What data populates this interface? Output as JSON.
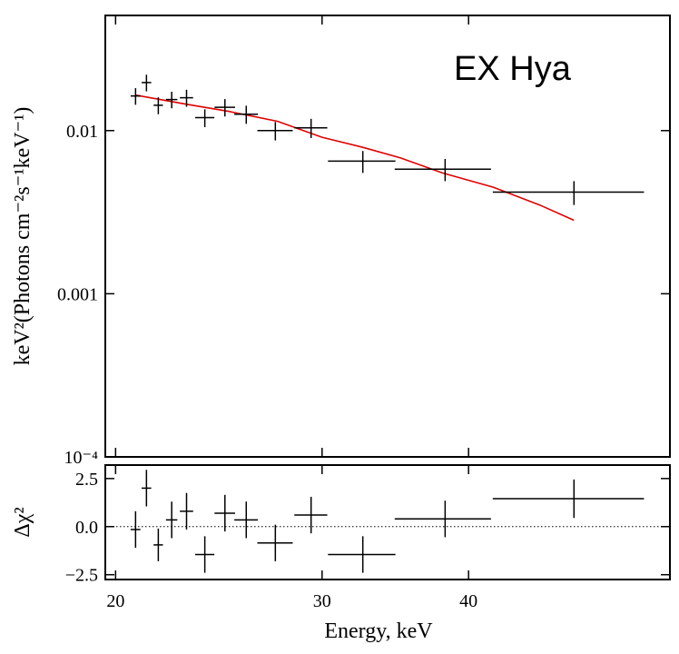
{
  "chart_data": [
    {
      "type": "scatter",
      "annotation": "EX Hya",
      "ylabel": "keV²(Photons cm⁻²s⁻¹keV⁻¹)",
      "xscale": "log",
      "yscale": "log",
      "xlim": [
        19.6,
        59.4
      ],
      "ylim": [
        0.0001,
        0.0508
      ],
      "xticks": [
        20,
        30,
        40
      ],
      "yticks": [
        0.01,
        0.001,
        {
          "value": 0.0001,
          "label": "10⁻⁴"
        }
      ],
      "color": "#000000",
      "x": [
        20.8,
        21.25,
        21.75,
        22.33,
        22.99,
        23.83,
        24.79,
        25.85,
        27.37,
        29.36,
        32.5,
        38.2,
        49.2
      ],
      "xerr": [
        0.2,
        0.2,
        0.2,
        0.25,
        0.3,
        0.45,
        0.5,
        0.6,
        0.95,
        0.95,
        2.15,
        3.6,
        7.25
      ],
      "values": [
        0.0163,
        0.0197,
        0.0143,
        0.0155,
        0.0159,
        0.012,
        0.0139,
        0.0126,
        0.01,
        0.0104,
        0.0065,
        0.0058,
        0.0042
      ],
      "yerr": [
        0.0019,
        0.0023,
        0.0017,
        0.0018,
        0.0019,
        0.0015,
        0.0017,
        0.0016,
        0.0013,
        0.0014,
        0.001,
        0.0009,
        0.0007
      ],
      "model": {
        "color": "#e00000",
        "x": [
          20.8,
          23,
          25,
          27.5,
          30,
          32.5,
          35,
          38,
          42,
          46,
          49.2
        ],
        "values": [
          0.0165,
          0.0145,
          0.0131,
          0.0114,
          0.0091,
          0.0079,
          0.0068,
          0.0055,
          0.0045,
          0.0035,
          0.00282
        ]
      }
    },
    {
      "type": "scatter",
      "xlabel": "Energy, keV",
      "ylabel": "Δχ²",
      "xscale": "log",
      "xlim": [
        19.6,
        59.4
      ],
      "ylim": [
        -2.75,
        3.2
      ],
      "xticks": [
        20,
        30,
        40
      ],
      "yticks": [
        2.5,
        {
          "value": 0,
          "label": "0.0"
        },
        {
          "value": -2.5,
          "label": "−2.5"
        }
      ],
      "hline": 0,
      "color": "#000000",
      "x": [
        20.8,
        21.25,
        21.75,
        22.33,
        22.99,
        23.83,
        24.79,
        25.85,
        27.37,
        29.36,
        32.5,
        38.2,
        49.2
      ],
      "xerr": [
        0.2,
        0.2,
        0.2,
        0.25,
        0.3,
        0.45,
        0.5,
        0.6,
        0.95,
        0.95,
        2.15,
        3.6,
        7.25
      ],
      "values": [
        -0.15,
        2.0,
        -0.95,
        0.35,
        0.8,
        -1.45,
        0.7,
        0.35,
        -0.85,
        0.6,
        -1.45,
        0.4,
        1.45
      ],
      "yerr": [
        0.95,
        0.95,
        0.85,
        0.95,
        0.95,
        0.95,
        0.95,
        0.95,
        0.95,
        0.95,
        0.95,
        0.95,
        1.0
      ]
    }
  ]
}
